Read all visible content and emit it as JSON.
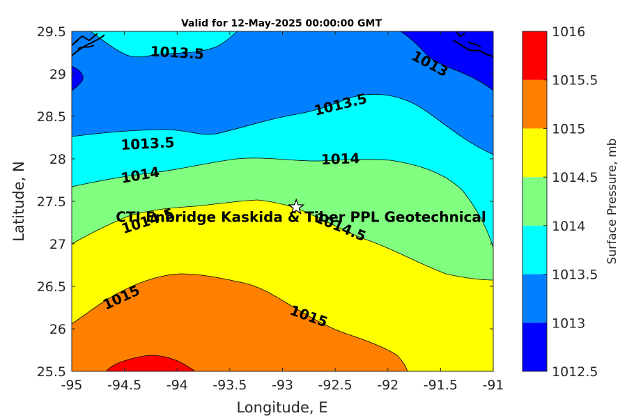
{
  "chart_data": {
    "type": "contour",
    "title": "Valid for 12-May-2025 00:00:00 GMT",
    "xlabel": "Longitude, E",
    "ylabel": "Latitude, N",
    "xlim": [
      -95,
      -91
    ],
    "ylim": [
      25.5,
      29.5
    ],
    "x_ticks": [
      "-95",
      "-94.5",
      "-94",
      "-93.5",
      "-93",
      "-92.5",
      "-92",
      "-91.5",
      "-91"
    ],
    "y_ticks": [
      "29.5",
      "29",
      "28.5",
      "28",
      "27.5",
      "27",
      "26.5",
      "26",
      "25.5"
    ],
    "colorbar": {
      "label": "Surface Pressure, mb",
      "range": [
        1012.5,
        1016
      ],
      "levels": [
        1012.5,
        1013,
        1013.5,
        1014,
        1014.5,
        1015,
        1015.5,
        1016
      ],
      "tick_labels": [
        "1016",
        "1015.5",
        "1015",
        "1014.5",
        "1014",
        "1013.5",
        "1013",
        "1012.5"
      ],
      "colors": [
        "#0000FF",
        "#0080FF",
        "#00FFFF",
        "#80FF80",
        "#FFFF00",
        "#FF8000",
        "#FF0000",
        "#800000"
      ]
    },
    "contour_labels": [
      {
        "text": "1013.5",
        "lon": -94.0,
        "lat": 29.25
      },
      {
        "text": "1013",
        "lon": -91.6,
        "lat": 29.12
      },
      {
        "text": "1013.5",
        "lon": -92.45,
        "lat": 28.64
      },
      {
        "text": "1013.5",
        "lon": -94.28,
        "lat": 28.18
      },
      {
        "text": "1014",
        "lon": -92.45,
        "lat": 28.0
      },
      {
        "text": "1014",
        "lon": -94.35,
        "lat": 27.81
      },
      {
        "text": "1014.5",
        "lon": -94.28,
        "lat": 27.27
      },
      {
        "text": "1014.5",
        "lon": -92.45,
        "lat": 27.2
      },
      {
        "text": "1015",
        "lon": -94.53,
        "lat": 26.37
      },
      {
        "text": "1015",
        "lon": -92.75,
        "lat": 26.15
      }
    ],
    "station": {
      "label": "CTI Enbridge  Kaskida & Tiber PPL Geotechnical",
      "lon": -92.87,
      "lat": 27.43
    },
    "bands": [
      {
        "level_low": 1015.5,
        "color": "#FF0000",
        "region": "small area near lon -94.2, lat 25.55"
      },
      {
        "level_low": 1015,
        "color": "#FF8000",
        "region": "southwest lobe"
      },
      {
        "level_low": 1014.5,
        "color": "#FFFF00",
        "region": "central band"
      },
      {
        "level_low": 1014,
        "color": "#80FF80",
        "region": "band north of station, widening east"
      },
      {
        "level_low": 1013.5,
        "color": "#00FFFF",
        "region": "band around lat 28.3, plus pocket near -94.1, 29.4"
      },
      {
        "level_low": 1013,
        "color": "#0080FF",
        "region": "northern zone"
      },
      {
        "level_low": 1012.5,
        "color": "#0000FF",
        "region": "northeast corner and small pocket at lon -95, lat 29"
      }
    ],
    "grid": false,
    "legend": "colorbar right"
  }
}
